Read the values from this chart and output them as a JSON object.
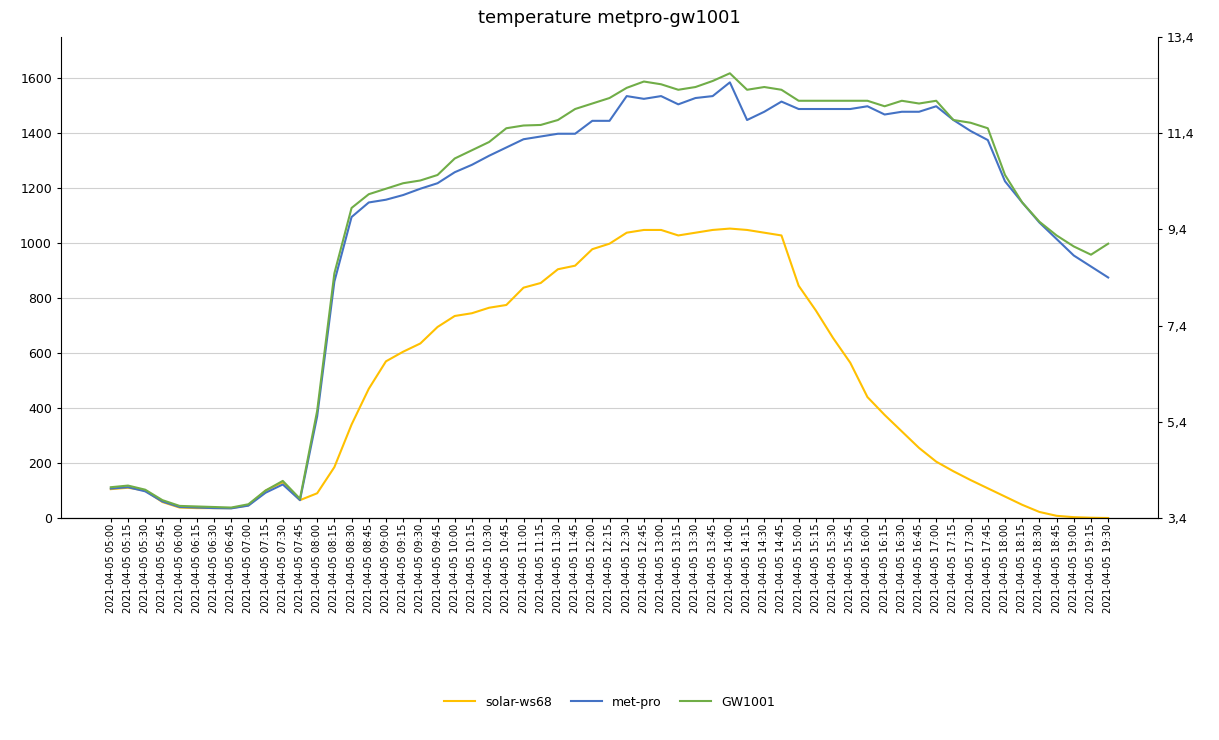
{
  "title": "temperature metpro-gw1001",
  "right_y_ticks": [
    3.4,
    5.4,
    7.4,
    9.4,
    11.4,
    13.4
  ],
  "left_ylim": [
    0,
    1750
  ],
  "left_yticks": [
    0,
    200,
    400,
    600,
    800,
    1000,
    1200,
    1400,
    1600
  ],
  "right_ylim": [
    3.4,
    13.4
  ],
  "colors": {
    "solar": "#FFC000",
    "metpro": "#4472C4",
    "gw1001": "#70AD47"
  },
  "legend_labels": [
    "solar-ws68",
    "met-pro",
    "GW1001"
  ],
  "timestamps": [
    "05:00",
    "05:15",
    "05:30",
    "05:45",
    "06:00",
    "06:15",
    "06:30",
    "06:45",
    "07:00",
    "07:15",
    "07:30",
    "07:45",
    "08:00",
    "08:15",
    "08:30",
    "08:45",
    "09:00",
    "09:15",
    "09:30",
    "09:45",
    "10:00",
    "10:15",
    "10:30",
    "10:45",
    "11:00",
    "11:15",
    "11:30",
    "11:45",
    "12:00",
    "12:15",
    "12:30",
    "12:45",
    "13:00",
    "13:15",
    "13:30",
    "13:45",
    "14:00",
    "14:15",
    "14:30",
    "14:45",
    "15:00",
    "15:15",
    "15:30",
    "15:45",
    "16:00",
    "16:15",
    "16:30",
    "16:45",
    "17:00",
    "17:15",
    "17:30",
    "17:45",
    "18:00",
    "18:15",
    "18:30",
    "18:45",
    "19:00",
    "19:15",
    "19:30"
  ],
  "solar_ws68": [
    105,
    110,
    100,
    58,
    38,
    36,
    36,
    36,
    46,
    100,
    130,
    65,
    90,
    185,
    340,
    470,
    570,
    605,
    635,
    695,
    735,
    745,
    765,
    775,
    838,
    855,
    905,
    918,
    978,
    998,
    1038,
    1048,
    1048,
    1028,
    1038,
    1048,
    1053,
    1048,
    1038,
    1028,
    845,
    755,
    655,
    565,
    440,
    375,
    315,
    255,
    205,
    170,
    138,
    108,
    78,
    48,
    22,
    8,
    3,
    1,
    0
  ],
  "metpro": [
    107,
    112,
    97,
    60,
    40,
    38,
    36,
    35,
    45,
    92,
    122,
    65,
    370,
    860,
    1095,
    1148,
    1158,
    1175,
    1198,
    1218,
    1258,
    1285,
    1318,
    1348,
    1378,
    1388,
    1398,
    1398,
    1445,
    1445,
    1535,
    1525,
    1535,
    1505,
    1528,
    1535,
    1585,
    1448,
    1478,
    1515,
    1488,
    1488,
    1488,
    1488,
    1498,
    1468,
    1478,
    1478,
    1498,
    1448,
    1408,
    1375,
    1225,
    1148,
    1075,
    1015,
    955,
    915,
    875
  ],
  "gw1001": [
    112,
    118,
    103,
    65,
    44,
    42,
    40,
    38,
    50,
    100,
    135,
    70,
    390,
    890,
    1128,
    1178,
    1198,
    1218,
    1228,
    1248,
    1308,
    1338,
    1368,
    1418,
    1428,
    1430,
    1448,
    1488,
    1508,
    1528,
    1565,
    1588,
    1578,
    1558,
    1568,
    1590,
    1618,
    1558,
    1568,
    1558,
    1518,
    1518,
    1518,
    1518,
    1518,
    1498,
    1518,
    1508,
    1518,
    1448,
    1438,
    1418,
    1248,
    1148,
    1078,
    1028,
    988,
    958,
    998
  ]
}
